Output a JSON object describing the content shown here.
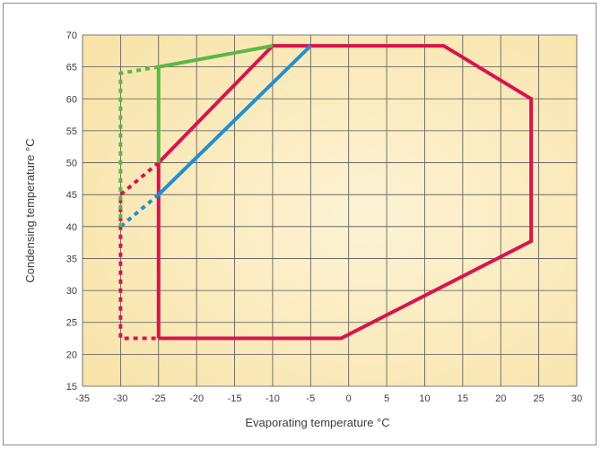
{
  "chart_data": {
    "type": "line",
    "title": "",
    "xlabel": "Evaporating temperature °C",
    "ylabel": "Condensing temperature °C",
    "xlim": [
      -35,
      30
    ],
    "ylim": [
      15,
      70
    ],
    "xticks": [
      -35,
      -30,
      -25,
      -20,
      -15,
      -10,
      -5,
      0,
      5,
      10,
      15,
      20,
      25,
      30
    ],
    "yticks": [
      15,
      20,
      25,
      30,
      35,
      40,
      45,
      50,
      55,
      60,
      65,
      70
    ],
    "xtick_labels": [
      "-35",
      "-30",
      "-25",
      "-20",
      "-15",
      "-10",
      "-5",
      "0",
      "5",
      "10",
      "15",
      "20",
      "25",
      "30"
    ],
    "ytick_labels": [
      "15",
      "20",
      "25",
      "30",
      "35",
      "40",
      "45",
      "50",
      "55",
      "60",
      "65",
      "70"
    ],
    "grid": true,
    "series": [
      {
        "color": "#d6154f",
        "solid_points": [
          [
            -25,
            22.5
          ],
          [
            -25,
            50
          ],
          [
            -10,
            68.3
          ],
          [
            12.5,
            68.3
          ],
          [
            24,
            60
          ],
          [
            24,
            37.7
          ],
          [
            -1,
            22.5
          ],
          [
            -25,
            22.5
          ]
        ],
        "dashed_points": [
          [
            -25,
            50
          ],
          [
            -30,
            45
          ],
          [
            -30,
            22.5
          ],
          [
            -25,
            22.5
          ]
        ]
      },
      {
        "color": "#1f8fd0",
        "solid_points": [
          [
            -25,
            45
          ],
          [
            -5,
            68.3
          ]
        ],
        "dashed_points": [
          [
            -25,
            45
          ],
          [
            -30,
            40
          ]
        ]
      },
      {
        "color": "#5bb845",
        "solid_points": [
          [
            -25,
            50
          ],
          [
            -25,
            65
          ],
          [
            -10,
            68.3
          ]
        ],
        "dashed_points": [
          [
            -25,
            65
          ],
          [
            -30,
            64
          ],
          [
            -30,
            40
          ]
        ]
      }
    ]
  }
}
